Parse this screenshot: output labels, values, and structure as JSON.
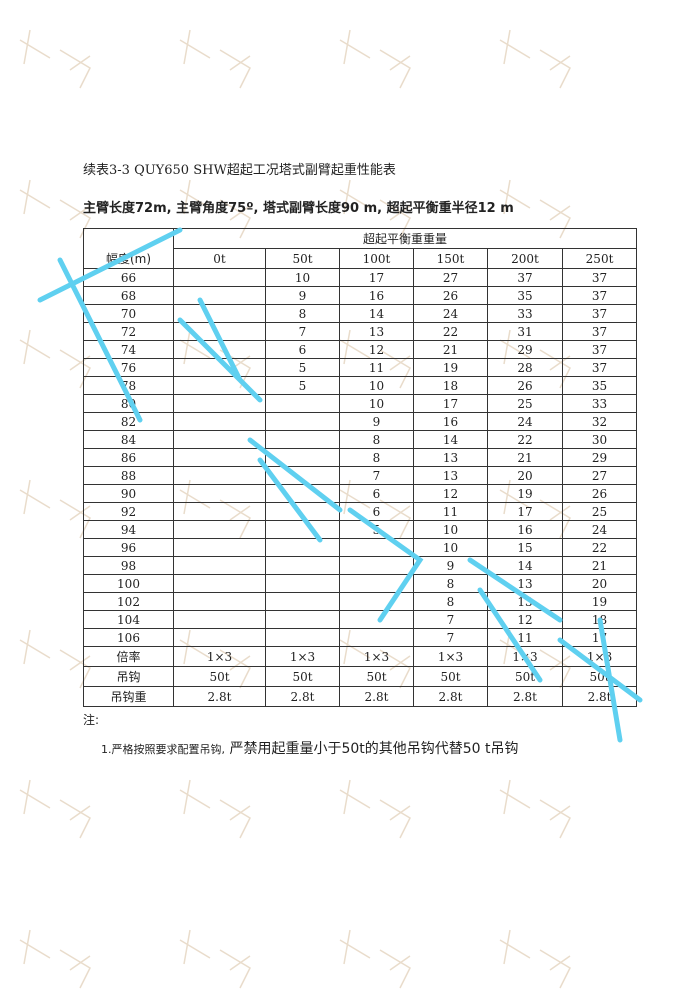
{
  "watermark": {
    "text": "成都巨象吊装",
    "color": "#e9dccb",
    "overlay_color": "#5fd0f0"
  },
  "caption": "续表3-3 QUY650 SHW超起工况塔式副臂起重性能表",
  "subtitle": "主臂长度72m, 主臂角度75º, 塔式副臂长度90 m, 超起平衡重半径12 m",
  "table": {
    "group_header": "超起平衡重重量",
    "radius_header": "幅度(m)",
    "columns": [
      "0t",
      "50t",
      "100t",
      "150t",
      "200t",
      "250t"
    ],
    "rows": [
      [
        "66",
        "",
        "10",
        "17",
        "27",
        "37",
        "37"
      ],
      [
        "68",
        "",
        "9",
        "16",
        "26",
        "35",
        "37"
      ],
      [
        "70",
        "",
        "8",
        "14",
        "24",
        "33",
        "37"
      ],
      [
        "72",
        "",
        "7",
        "13",
        "22",
        "31",
        "37"
      ],
      [
        "74",
        "",
        "6",
        "12",
        "21",
        "29",
        "37"
      ],
      [
        "76",
        "",
        "5",
        "11",
        "19",
        "28",
        "37"
      ],
      [
        "78",
        "",
        "5",
        "10",
        "18",
        "26",
        "35"
      ],
      [
        "80",
        "",
        "",
        "10",
        "17",
        "25",
        "33"
      ],
      [
        "82",
        "",
        "",
        "9",
        "16",
        "24",
        "32"
      ],
      [
        "84",
        "",
        "",
        "8",
        "14",
        "22",
        "30"
      ],
      [
        "86",
        "",
        "",
        "8",
        "13",
        "21",
        "29"
      ],
      [
        "88",
        "",
        "",
        "7",
        "13",
        "20",
        "27"
      ],
      [
        "90",
        "",
        "",
        "6",
        "12",
        "19",
        "26"
      ],
      [
        "92",
        "",
        "",
        "6",
        "11",
        "17",
        "25"
      ],
      [
        "94",
        "",
        "",
        "5",
        "10",
        "16",
        "24"
      ],
      [
        "96",
        "",
        "",
        "",
        "10",
        "15",
        "22"
      ],
      [
        "98",
        "",
        "",
        "",
        "9",
        "14",
        "21"
      ],
      [
        "100",
        "",
        "",
        "",
        "8",
        "13",
        "20"
      ],
      [
        "102",
        "",
        "",
        "",
        "8",
        "13",
        "19"
      ],
      [
        "104",
        "",
        "",
        "",
        "7",
        "12",
        "18"
      ],
      [
        "106",
        "",
        "",
        "",
        "7",
        "11",
        "17"
      ]
    ],
    "footer_rows": [
      [
        "倍率",
        "1×3",
        "1×3",
        "1×3",
        "1×3",
        "1×3",
        "1×3"
      ],
      [
        "吊钩",
        "50t",
        "50t",
        "50t",
        "50t",
        "50t",
        "50t"
      ],
      [
        "吊钩重",
        "2.8t",
        "2.8t",
        "2.8t",
        "2.8t",
        "2.8t",
        "2.8t"
      ]
    ]
  },
  "note_label": "注:",
  "note_prefix": "1.严格按照要求配置吊钩,",
  "note_text": " 严禁用起重量小于50t的其他吊钩代替50 t吊钩"
}
